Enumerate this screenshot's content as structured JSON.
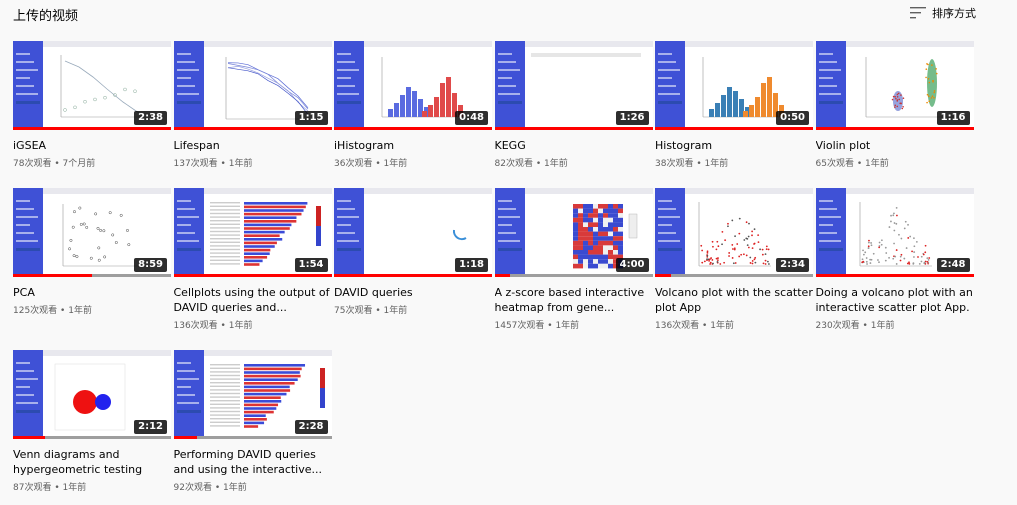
{
  "header": {
    "title": "上传的视频",
    "sort_label": "排序方式",
    "sort_icon": "sort-icon"
  },
  "colors": {
    "app_sidebar": "#3f51d6",
    "progress": "#ff0000",
    "progress_track": "#9e9e9e",
    "duration_bg": "#000000"
  },
  "videos": [
    {
      "title": "iGSEA",
      "duration": "2:38",
      "views": "78次观看",
      "age": "7个月前",
      "watched": 1.0,
      "thumb": "line"
    },
    {
      "title": "Lifespan",
      "duration": "1:15",
      "views": "137次观看",
      "age": "1年前",
      "watched": 1.0,
      "thumb": "lines"
    },
    {
      "title": "iHistogram",
      "duration": "0:48",
      "views": "36次观看",
      "age": "1年前",
      "watched": 1.0,
      "thumb": "hist-br"
    },
    {
      "title": "KEGG",
      "duration": "1:26",
      "views": "82次观看",
      "age": "1年前",
      "watched": 1.0,
      "thumb": "blank"
    },
    {
      "title": "Histogram",
      "duration": "0:50",
      "views": "38次观看",
      "age": "1年前",
      "watched": 1.0,
      "thumb": "hist-bo"
    },
    {
      "title": "Violin plot",
      "duration": "1:16",
      "views": "65次观看",
      "age": "1年前",
      "watched": 1.0,
      "thumb": "violin"
    },
    {
      "title": "PCA",
      "duration": "8:59",
      "views": "125次观看",
      "age": "1年前",
      "watched": 0.5,
      "thumb": "scatter"
    },
    {
      "title": "Cellplots using the output of DAVID queries and...",
      "duration": "1:54",
      "views": "136次观看",
      "age": "1年前",
      "watched": 1.0,
      "thumb": "hbar"
    },
    {
      "title": "DAVID queries",
      "duration": "1:18",
      "views": "75次观看",
      "age": "1年前",
      "watched": 1.0,
      "thumb": "arc"
    },
    {
      "title": "A z-score based interactive heatmap from gene...",
      "duration": "4:00",
      "views": "1457次观看",
      "age": "1年前",
      "watched": 0.1,
      "thumb": "heatmap"
    },
    {
      "title": "Volcano plot with the scatter plot App",
      "duration": "2:34",
      "views": "136次观看",
      "age": "1年前",
      "watched": 0.1,
      "thumb": "volcano-r"
    },
    {
      "title": "Doing a volcano plot with an interactive scatter plot App.",
      "duration": "2:48",
      "views": "230次观看",
      "age": "1年前",
      "watched": 1.0,
      "thumb": "volcano-g"
    },
    {
      "title": "Venn diagrams and hypergeometric testing",
      "duration": "2:12",
      "views": "87次观看",
      "age": "1年前",
      "watched": 0.2,
      "thumb": "venn"
    },
    {
      "title": "Performing DAVID queries and using the interactive...",
      "duration": "2:28",
      "views": "92次观看",
      "age": "1年前",
      "watched": 0.15,
      "thumb": "hbar2"
    }
  ]
}
